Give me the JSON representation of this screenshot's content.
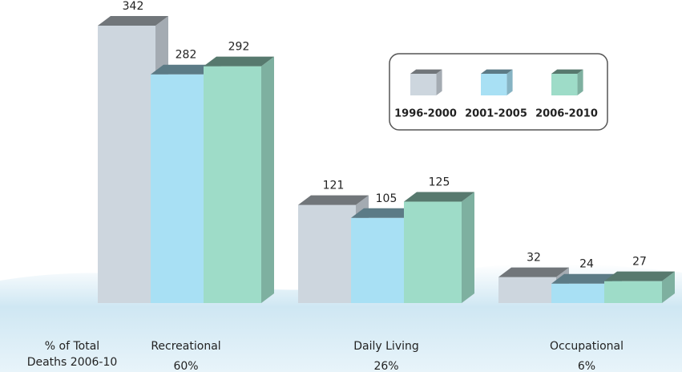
{
  "chart_data": {
    "type": "bar3d",
    "categories": [
      "Recreational",
      "Daily Living",
      "Occupational"
    ],
    "category_notes": [
      "60%",
      "26%",
      "6%"
    ],
    "category_notes_title": [
      "% of Total",
      "Deaths 2006-10"
    ],
    "series": [
      {
        "name": "1996-2000",
        "color": "#cdd6de",
        "values": [
          342,
          121,
          32
        ]
      },
      {
        "name": "2001-2005",
        "color": "#a8e0f4",
        "values": [
          282,
          105,
          24
        ]
      },
      {
        "name": "2006-2010",
        "color": "#9edcc8",
        "values": [
          292,
          125,
          27
        ]
      }
    ],
    "legend": "top-right"
  }
}
